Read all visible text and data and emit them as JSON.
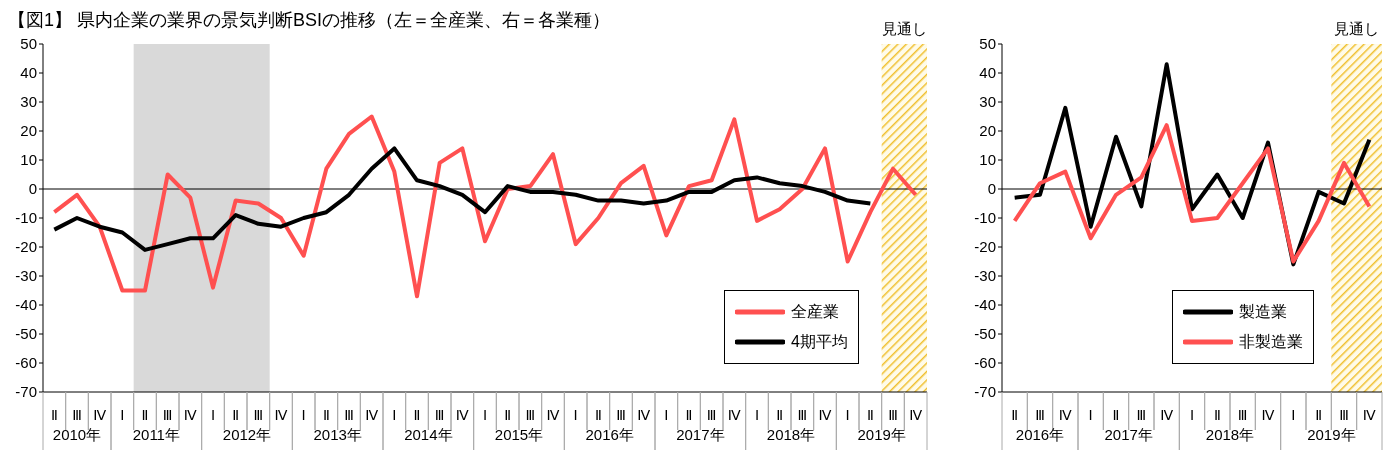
{
  "chart_data": [
    {
      "type": "line",
      "title": "【図1】 県内企業の業界の景気判断BSIの推移（左＝全産業、右＝各業種）",
      "categories": [
        "Ⅱ",
        "Ⅲ",
        "Ⅳ",
        "Ⅰ",
        "Ⅱ",
        "Ⅲ",
        "Ⅳ",
        "Ⅰ",
        "Ⅱ",
        "Ⅲ",
        "Ⅳ",
        "Ⅰ",
        "Ⅱ",
        "Ⅲ",
        "Ⅳ",
        "Ⅰ",
        "Ⅱ",
        "Ⅲ",
        "Ⅳ",
        "Ⅰ",
        "Ⅱ",
        "Ⅲ",
        "Ⅳ",
        "Ⅰ",
        "Ⅱ",
        "Ⅲ",
        "Ⅳ",
        "Ⅰ",
        "Ⅱ",
        "Ⅲ",
        "Ⅳ",
        "Ⅰ",
        "Ⅱ",
        "Ⅲ",
        "Ⅳ",
        "Ⅰ",
        "Ⅱ",
        "Ⅲ",
        "Ⅳ"
      ],
      "ylim": [
        -70,
        50
      ],
      "yticks": [
        -70,
        -60,
        -50,
        -40,
        -30,
        -20,
        -10,
        0,
        10,
        20,
        30,
        40,
        50
      ],
      "series": [
        {
          "name": "全産業",
          "color": "#ff5050",
          "values": [
            -8,
            -2,
            -13,
            -35,
            -35,
            5,
            -3,
            -34,
            -4,
            -5,
            -10,
            -23,
            7,
            19,
            25,
            6,
            -37,
            9,
            14,
            -18,
            0,
            1,
            12,
            -19,
            -10,
            2,
            8,
            -16,
            1,
            3,
            24,
            -11,
            -7,
            0,
            14,
            -25,
            -8,
            7,
            -2
          ]
        },
        {
          "name": "4期平均",
          "color": "#000000",
          "values": [
            -14,
            -10,
            -13,
            -15,
            -21,
            -19,
            -17,
            -17,
            -9,
            -12,
            -13,
            -10,
            -8,
            -2,
            7,
            14,
            3,
            1,
            -2,
            -8,
            1,
            -1,
            -1,
            -2,
            -4,
            -4,
            -5,
            -4,
            -1,
            -1,
            3,
            4,
            2,
            1,
            -1,
            -4,
            -5,
            null,
            null
          ]
        }
      ],
      "ref_lines": [
        {
          "axis": "y",
          "value": 0,
          "color": "#000000"
        }
      ],
      "annotations": [
        "見通し",
        "2010年",
        "2011年",
        "2012年",
        "2013年",
        "2014年",
        "2015年",
        "2016年",
        "2017年",
        "2018年",
        "2019年"
      ],
      "legend": "bottom right",
      "grid": false,
      "marker": "none",
      "line_style": "solid"
    },
    {
      "type": "line",
      "categories": [
        "Ⅱ",
        "Ⅲ",
        "Ⅳ",
        "Ⅰ",
        "Ⅱ",
        "Ⅲ",
        "Ⅳ",
        "Ⅰ",
        "Ⅱ",
        "Ⅲ",
        "Ⅳ",
        "Ⅰ",
        "Ⅱ",
        "Ⅲ",
        "Ⅳ"
      ],
      "ylim": [
        -70,
        50
      ],
      "yticks": [
        -70,
        -60,
        -50,
        -40,
        -30,
        -20,
        -10,
        0,
        10,
        20,
        30,
        40,
        50
      ],
      "series": [
        {
          "name": "製造業",
          "color": "#000000",
          "values": [
            -3,
            -2,
            28,
            -13,
            18,
            -6,
            43,
            -7,
            5,
            -10,
            16,
            -26,
            -1,
            -5,
            17
          ]
        },
        {
          "name": "非製造業",
          "color": "#ff5050",
          "values": [
            -11,
            2,
            6,
            -17,
            -2,
            4,
            22,
            -11,
            -10,
            2,
            14,
            -25,
            -11,
            9,
            -6
          ]
        }
      ],
      "ref_lines": [
        {
          "axis": "y",
          "value": 0,
          "color": "#000000"
        }
      ],
      "annotations": [
        "見通し",
        "2016年",
        "2017年",
        "2018年",
        "2019年"
      ],
      "legend": "bottom right",
      "grid": false,
      "marker": "none",
      "line_style": "solid"
    }
  ]
}
